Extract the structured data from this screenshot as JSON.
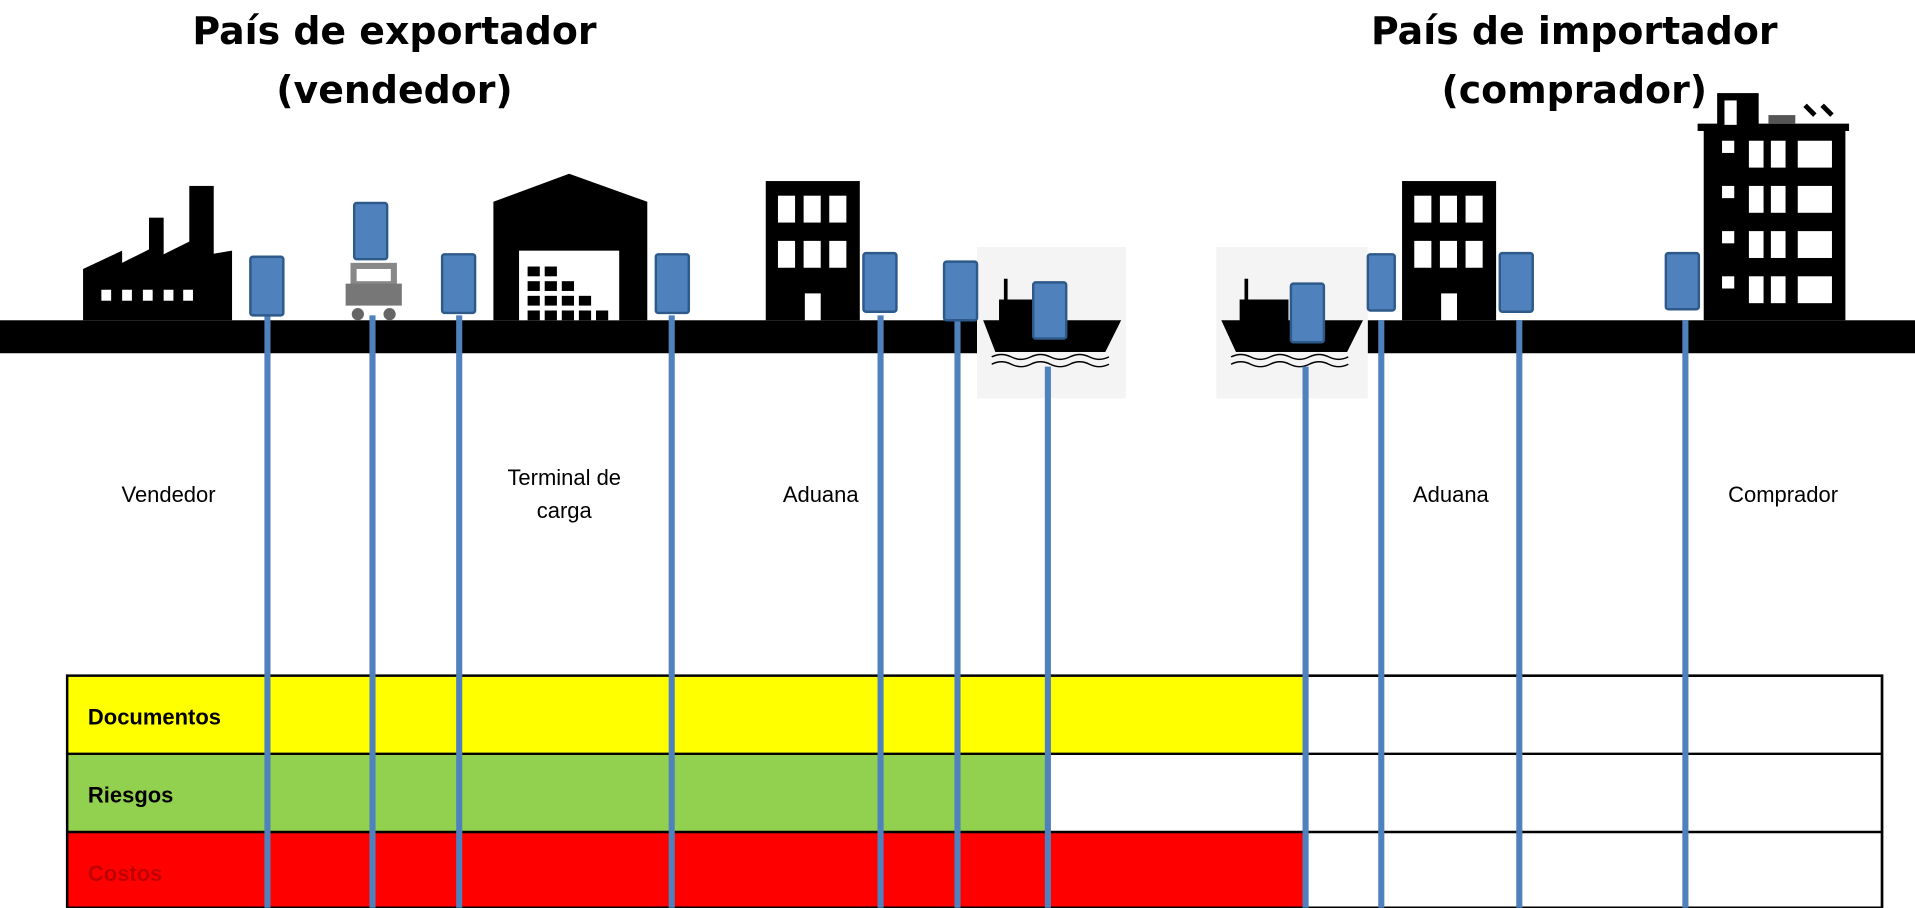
{
  "header": {
    "exporter_title": [
      "País de exportador",
      "(vendedor)"
    ],
    "importer_title": [
      "País de importador",
      "(comprador)"
    ]
  },
  "locations": [
    {
      "label": [
        "Vendedor"
      ]
    },
    {
      "label": [
        "Terminal de",
        "carga"
      ]
    },
    {
      "label": [
        "Aduana"
      ]
    },
    {
      "label": [
        "Aduana"
      ]
    },
    {
      "label": [
        "Comprador"
      ]
    }
  ],
  "table": {
    "rows": [
      "Documentos",
      "Riesgos",
      "Costos"
    ]
  }
}
